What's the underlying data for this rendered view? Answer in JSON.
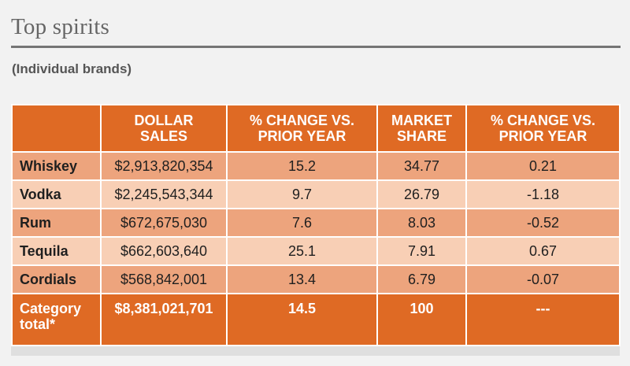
{
  "title": "Top spirits",
  "subtitle": "(Individual brands)",
  "chart_data": {
    "type": "table",
    "columns": [
      "",
      "DOLLAR SALES",
      "% CHANGE VS. PRIOR YEAR",
      "MARKET SHARE",
      "% CHANGE VS. PRIOR YEAR"
    ],
    "header_lines": [
      [
        "",
        ""
      ],
      [
        "DOLLAR",
        "SALES"
      ],
      [
        "% CHANGE VS.",
        "PRIOR YEAR"
      ],
      [
        "MARKET",
        "SHARE"
      ],
      [
        "% CHANGE VS.",
        "PRIOR YEAR"
      ]
    ],
    "rows": [
      [
        "Whiskey",
        "$2,913,820,354",
        "15.2",
        "34.77",
        "0.21"
      ],
      [
        "Vodka",
        "$2,245,543,344",
        "9.7",
        "26.79",
        "-1.18"
      ],
      [
        "Rum",
        "$672,675,030",
        "7.6",
        "8.03",
        "-0.52"
      ],
      [
        "Tequila",
        "$662,603,640",
        "25.1",
        "7.91",
        "0.67"
      ],
      [
        "Cordials",
        "$568,842,001",
        "13.4",
        "6.79",
        "-0.07"
      ]
    ],
    "total_row": {
      "label_lines": [
        "Category",
        "total*"
      ],
      "values": [
        "$8,381,021,701",
        "14.5",
        "100",
        "---"
      ]
    }
  },
  "colors": {
    "header": "#df6a24",
    "row_dark": "#eda47d",
    "row_light": "#f8cfb5",
    "total": "#df6a24",
    "title": "#666666"
  }
}
